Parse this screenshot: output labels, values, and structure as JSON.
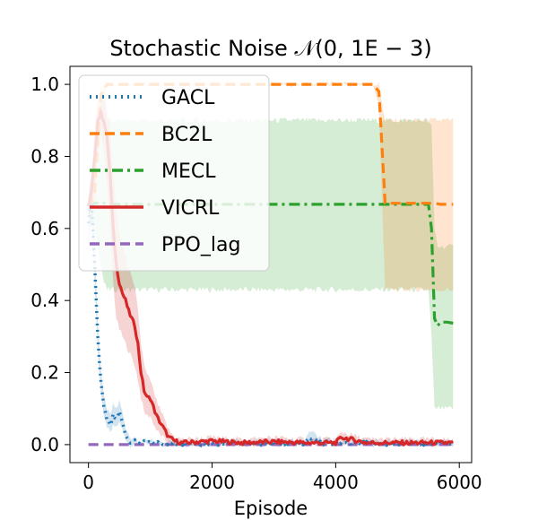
{
  "chart_data": {
    "type": "line",
    "title": "Stochastic Noise 𝒩(0, 1E − 3)",
    "xlabel": "Episode",
    "ylabel": "",
    "xlim": [
      -300,
      6200
    ],
    "ylim": [
      -0.05,
      1.05
    ],
    "xticks": [
      0,
      2000,
      4000,
      6000
    ],
    "xtick_labels": [
      "0",
      "2000",
      "4000",
      "6000"
    ],
    "yticks": [
      0.0,
      0.2,
      0.4,
      0.6,
      0.8,
      1.0
    ],
    "ytick_labels": [
      "0.0",
      "0.2",
      "0.4",
      "0.6",
      "0.8",
      "1.0"
    ],
    "legend_position": "top-left",
    "series": [
      {
        "name": "GACL",
        "color": "#1f77b4",
        "style": "dotted",
        "x": [
          0,
          50,
          100,
          150,
          200,
          250,
          300,
          350,
          400,
          450,
          500,
          550,
          600,
          650,
          700,
          800,
          1000,
          1500,
          2000,
          2500,
          3000,
          3500,
          3600,
          3700,
          4000,
          4500,
          5000,
          5500,
          5900
        ],
        "values": [
          0.62,
          0.68,
          0.5,
          0.3,
          0.18,
          0.1,
          0.07,
          0.05,
          0.08,
          0.07,
          0.09,
          0.06,
          0.03,
          0.01,
          0.01,
          0.005,
          0.005,
          0.003,
          0.003,
          0.003,
          0.003,
          0.003,
          0.02,
          0.005,
          0.003,
          0.003,
          0.003,
          0.003,
          0.003
        ],
        "lower": [
          0.56,
          0.62,
          0.45,
          0.26,
          0.15,
          0.07,
          0.05,
          0.03,
          0.05,
          0.05,
          0.06,
          0.04,
          0.02,
          0.0,
          0.0,
          0.0,
          0.0,
          0.0,
          0.0,
          0.0,
          0.0,
          0.0,
          0.0,
          0.0,
          0.0,
          0.0,
          0.0,
          0.0,
          0.0
        ],
        "upper": [
          0.68,
          0.74,
          0.56,
          0.34,
          0.21,
          0.13,
          0.1,
          0.08,
          0.11,
          0.1,
          0.12,
          0.09,
          0.05,
          0.03,
          0.02,
          0.01,
          0.01,
          0.01,
          0.01,
          0.01,
          0.01,
          0.01,
          0.04,
          0.02,
          0.01,
          0.01,
          0.01,
          0.01,
          0.01
        ]
      },
      {
        "name": "BC2L",
        "color": "#ff7f0e",
        "style": "dashed",
        "x": [
          0,
          100,
          200,
          300,
          1000,
          2000,
          3000,
          4000,
          4600,
          4700,
          4800,
          4900,
          5000,
          5200,
          5500,
          5600,
          5700,
          5900
        ],
        "values": [
          0.66,
          0.7,
          0.97,
          1.0,
          1.0,
          1.0,
          1.0,
          1.0,
          1.0,
          0.98,
          0.67,
          0.67,
          0.67,
          0.67,
          0.67,
          0.67,
          0.667,
          0.667
        ],
        "lower": [
          0.63,
          0.67,
          0.95,
          1.0,
          1.0,
          1.0,
          1.0,
          1.0,
          1.0,
          0.94,
          0.43,
          0.43,
          0.43,
          0.43,
          0.43,
          0.43,
          0.43,
          0.43
        ],
        "upper": [
          0.69,
          0.73,
          0.99,
          1.0,
          1.0,
          1.0,
          1.0,
          1.0,
          1.0,
          1.0,
          0.9,
          0.9,
          0.9,
          0.9,
          0.9,
          0.9,
          0.9,
          0.9
        ]
      },
      {
        "name": "MECL",
        "color": "#2ca02c",
        "style": "dashdot",
        "x": [
          0,
          100,
          200,
          250,
          300,
          500,
          1000,
          2000,
          3000,
          4000,
          5000,
          5500,
          5550,
          5600,
          5650,
          5700,
          5800,
          5900
        ],
        "values": [
          0.66,
          0.67,
          0.67,
          0.67,
          0.667,
          0.667,
          0.667,
          0.667,
          0.667,
          0.667,
          0.667,
          0.667,
          0.6,
          0.35,
          0.33,
          0.34,
          0.34,
          0.337
        ],
        "lower": [
          0.62,
          0.6,
          0.5,
          0.45,
          0.43,
          0.43,
          0.43,
          0.43,
          0.43,
          0.43,
          0.43,
          0.43,
          0.3,
          0.1,
          0.1,
          0.1,
          0.1,
          0.1
        ],
        "upper": [
          0.7,
          0.8,
          0.95,
          0.98,
          0.9,
          0.9,
          0.9,
          0.9,
          0.9,
          0.9,
          0.9,
          0.9,
          0.88,
          0.6,
          0.55,
          0.55,
          0.55,
          0.55
        ]
      },
      {
        "name": "VICRL",
        "color": "#d62728",
        "style": "solid",
        "x": [
          0,
          50,
          100,
          150,
          200,
          250,
          300,
          350,
          400,
          450,
          500,
          550,
          600,
          650,
          700,
          750,
          800,
          850,
          900,
          950,
          1000,
          1100,
          1200,
          1300,
          1400,
          1500,
          2000,
          2500,
          3000,
          3500,
          4000,
          4100,
          4500,
          5000,
          5500,
          5900
        ],
        "values": [
          0.66,
          0.7,
          0.8,
          0.9,
          0.92,
          0.9,
          0.85,
          0.75,
          0.6,
          0.5,
          0.45,
          0.42,
          0.4,
          0.37,
          0.35,
          0.33,
          0.28,
          0.2,
          0.15,
          0.13,
          0.13,
          0.08,
          0.05,
          0.02,
          0.01,
          0.005,
          0.01,
          0.005,
          0.008,
          0.005,
          0.005,
          0.02,
          0.005,
          0.005,
          0.005,
          0.005
        ],
        "lower": [
          0.63,
          0.66,
          0.72,
          0.82,
          0.86,
          0.82,
          0.72,
          0.6,
          0.45,
          0.35,
          0.32,
          0.3,
          0.28,
          0.26,
          0.24,
          0.22,
          0.18,
          0.13,
          0.09,
          0.08,
          0.08,
          0.04,
          0.02,
          0.0,
          0.0,
          0.0,
          0.0,
          0.0,
          0.0,
          0.0,
          0.0,
          0.0,
          0.0,
          0.0,
          0.0,
          0.0
        ],
        "upper": [
          0.69,
          0.75,
          0.88,
          0.96,
          0.97,
          0.96,
          0.93,
          0.88,
          0.75,
          0.65,
          0.58,
          0.55,
          0.52,
          0.49,
          0.46,
          0.43,
          0.38,
          0.28,
          0.22,
          0.19,
          0.18,
          0.12,
          0.08,
          0.04,
          0.02,
          0.015,
          0.02,
          0.015,
          0.02,
          0.015,
          0.015,
          0.035,
          0.015,
          0.015,
          0.015,
          0.015
        ]
      },
      {
        "name": "PPO_lag",
        "color": "#9467bd",
        "style": "dashed",
        "x": [
          0,
          5900
        ],
        "values": [
          0.0,
          0.0
        ]
      }
    ]
  }
}
